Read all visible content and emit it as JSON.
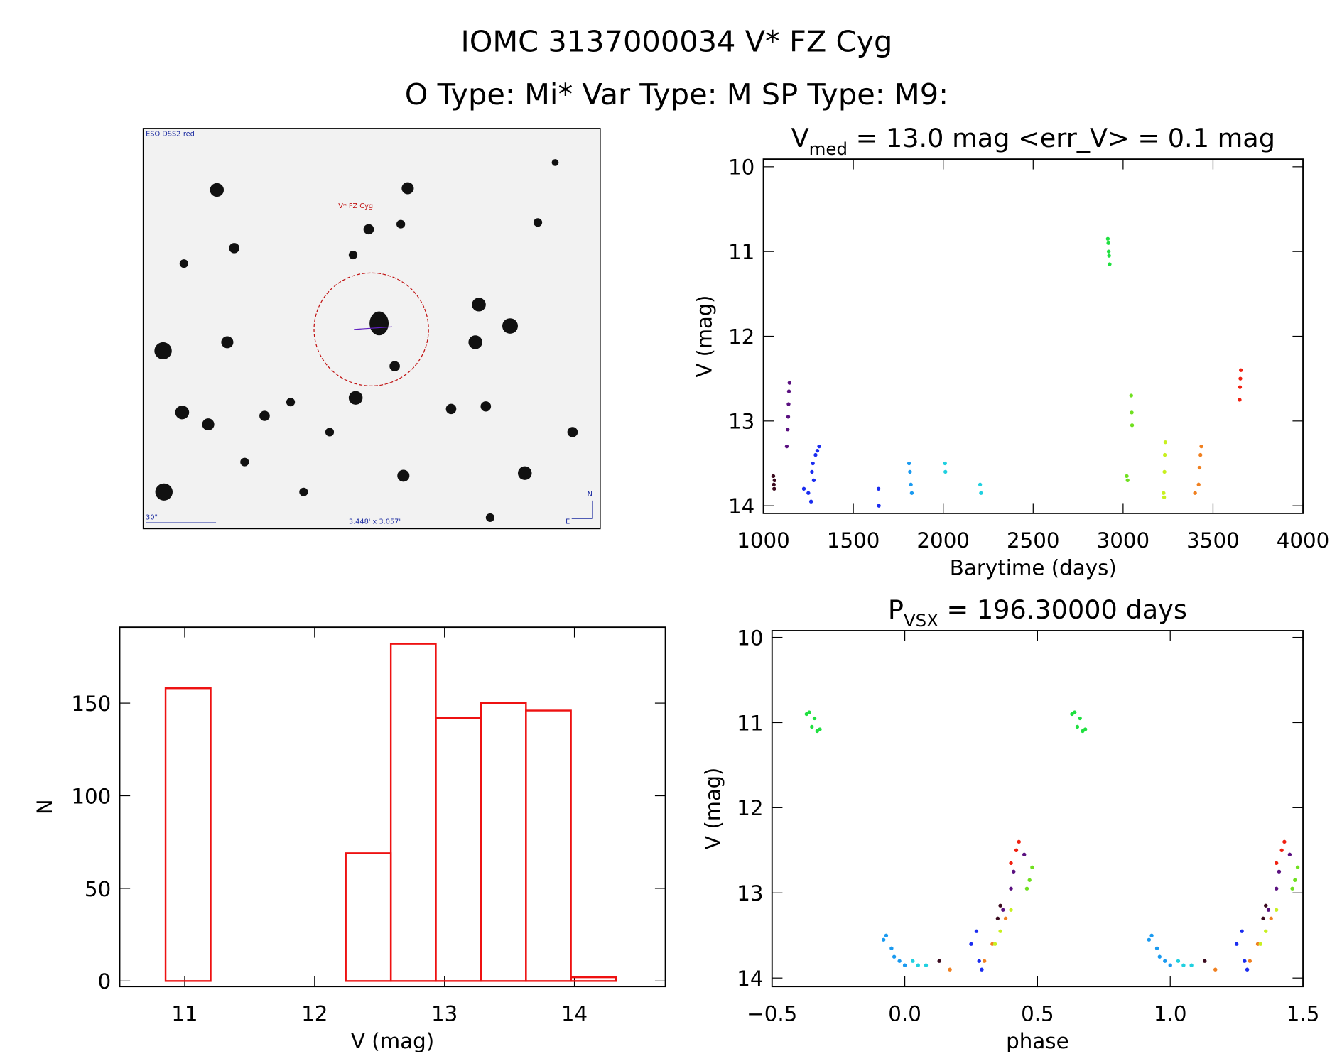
{
  "title": "IOMC 3137000034   V* FZ Cyg",
  "subtitle": "O Type: Mi*  Var Type: M  SP Type: M9:",
  "image": {
    "survey": "ESO DSS2-red",
    "target": "V* FZ Cyg",
    "scale": "30\"",
    "size": "3.448' x 3.057'",
    "north": "N",
    "east": "E"
  },
  "chart_data": [
    {
      "type": "scatter",
      "title_parts": [
        "V",
        "med",
        " = 13.0 mag <err_V> = 0.1 mag"
      ],
      "x_label": "Barytime (days)",
      "y_label": "V (mag)",
      "xlim": [
        1000,
        4000
      ],
      "ylim": [
        14.09,
        9.91
      ],
      "xticks": [
        1000,
        1500,
        2000,
        2500,
        3000,
        3500,
        4000
      ],
      "yticks": [
        10,
        11,
        12,
        13,
        14
      ],
      "series": [
        {
          "color": "#3a0a1e",
          "x": [
            1055,
            1058,
            1060,
            1062
          ],
          "values": [
            13.65,
            13.75,
            13.8,
            13.7
          ]
        },
        {
          "color": "#5a1080",
          "x": [
            1130,
            1135,
            1138,
            1140,
            1142,
            1145
          ],
          "values": [
            13.3,
            13.1,
            12.95,
            12.8,
            12.65,
            12.55
          ]
        },
        {
          "color": "#1a2cf0",
          "x": [
            1225,
            1250,
            1265,
            1270,
            1275,
            1280,
            1290,
            1300,
            1310,
            1640,
            1642
          ],
          "values": [
            13.8,
            13.85,
            13.95,
            13.6,
            13.5,
            13.7,
            13.4,
            13.35,
            13.3,
            13.8,
            14.0
          ]
        },
        {
          "color": "#1a9af0",
          "x": [
            1810,
            1815,
            1820,
            1825
          ],
          "values": [
            13.5,
            13.6,
            13.75,
            13.85
          ]
        },
        {
          "color": "#20d0e0",
          "x": [
            2010,
            2012,
            2205,
            2210
          ],
          "values": [
            13.5,
            13.6,
            13.75,
            13.85
          ]
        },
        {
          "color": "#20e040",
          "x": [
            2915,
            2918,
            2920,
            2922,
            2925
          ],
          "values": [
            10.85,
            10.9,
            11.0,
            11.05,
            11.15
          ]
        },
        {
          "color": "#70e020",
          "x": [
            3020,
            3025,
            3045,
            3048,
            3050
          ],
          "values": [
            13.65,
            13.7,
            12.7,
            12.9,
            13.05
          ]
        },
        {
          "color": "#c8f020",
          "x": [
            3225,
            3228,
            3230,
            3232,
            3235
          ],
          "values": [
            13.85,
            13.9,
            13.6,
            13.4,
            13.25
          ]
        },
        {
          "color": "#f08020",
          "x": [
            3400,
            3420,
            3425,
            3430,
            3435
          ],
          "values": [
            13.85,
            13.75,
            13.55,
            13.4,
            13.3
          ]
        },
        {
          "color": "#f02010",
          "x": [
            3648,
            3650,
            3652,
            3655
          ],
          "values": [
            12.75,
            12.6,
            12.5,
            12.4
          ]
        }
      ]
    },
    {
      "type": "scatter",
      "title_parts": [
        "P",
        "VSX",
        " = 196.30000 days"
      ],
      "x_label": "phase",
      "y_label": "V (mag)",
      "xlim": [
        -0.5,
        1.5
      ],
      "ylim": [
        14.1,
        9.92
      ],
      "xticks": [
        {
          "value": -0.5,
          "label": "−0.5"
        },
        {
          "value": 0,
          "label": "0.0"
        },
        {
          "value": 0.5,
          "label": "0.5"
        },
        {
          "value": 1,
          "label": "1.0"
        },
        {
          "value": 1.5,
          "label": "1.5"
        }
      ],
      "yticks": [
        10,
        11,
        12,
        13,
        14
      ],
      "series": [
        {
          "color": "#20e040",
          "x": [
            -0.37,
            -0.36,
            -0.35,
            -0.34,
            -0.33,
            -0.32,
            0.63,
            0.64,
            0.65,
            0.66,
            0.67,
            0.68
          ],
          "values": [
            10.9,
            10.88,
            11.05,
            10.95,
            11.1,
            11.08,
            10.9,
            10.88,
            11.05,
            10.95,
            11.1,
            11.08
          ]
        },
        {
          "color": "#1a9af0",
          "x": [
            -0.08,
            -0.07,
            -0.05,
            -0.04,
            -0.02,
            0.0,
            0.92,
            0.93,
            0.95,
            0.96,
            0.98,
            1.0
          ],
          "values": [
            13.55,
            13.5,
            13.65,
            13.75,
            13.8,
            13.85,
            13.55,
            13.5,
            13.65,
            13.75,
            13.8,
            13.85
          ]
        },
        {
          "color": "#20d0e0",
          "x": [
            0.03,
            0.05,
            0.08,
            1.03,
            1.05,
            1.08
          ],
          "values": [
            13.8,
            13.85,
            13.85,
            13.8,
            13.85,
            13.85
          ]
        },
        {
          "color": "#3a0a1e",
          "x": [
            0.13,
            0.35,
            0.36,
            1.13,
            1.35,
            1.36
          ],
          "values": [
            13.8,
            13.3,
            13.15,
            13.8,
            13.3,
            13.15
          ]
        },
        {
          "color": "#1a2cf0",
          "x": [
            0.25,
            0.27,
            0.28,
            0.29,
            1.25,
            1.27,
            1.28,
            1.29
          ],
          "values": [
            13.6,
            13.45,
            13.8,
            13.9,
            13.6,
            13.45,
            13.8,
            13.9
          ]
        },
        {
          "color": "#f08020",
          "x": [
            0.17,
            0.3,
            0.33,
            0.38,
            1.17,
            1.3,
            1.33,
            1.38
          ],
          "values": [
            13.9,
            13.8,
            13.6,
            13.3,
            13.9,
            13.8,
            13.6,
            13.3
          ]
        },
        {
          "color": "#c8f020",
          "x": [
            0.34,
            0.36,
            0.4,
            1.34,
            1.36,
            1.4
          ],
          "values": [
            13.6,
            13.45,
            13.2,
            13.6,
            13.45,
            13.2
          ]
        },
        {
          "color": "#5a1080",
          "x": [
            0.37,
            0.4,
            0.41,
            0.45,
            1.37,
            1.4,
            1.41,
            1.45
          ],
          "values": [
            13.2,
            12.95,
            12.75,
            12.55,
            13.2,
            12.95,
            12.75,
            12.55
          ]
        },
        {
          "color": "#f02010",
          "x": [
            0.4,
            0.42,
            0.43,
            1.4,
            1.42,
            1.43
          ],
          "values": [
            12.65,
            12.5,
            12.4,
            12.65,
            12.5,
            12.4
          ]
        },
        {
          "color": "#70e020",
          "x": [
            0.46,
            0.47,
            0.48,
            1.46,
            1.47,
            1.48
          ],
          "values": [
            12.95,
            12.85,
            12.7,
            12.95,
            12.85,
            12.7
          ]
        }
      ]
    },
    {
      "type": "histogram",
      "x_label": "V (mag)",
      "y_label": "N",
      "color": "#ee1111",
      "bins": [
        10.853,
        11.2,
        11.547,
        11.893,
        12.24,
        12.587,
        12.933,
        13.28,
        13.627,
        13.973,
        14.32
      ],
      "counts": [
        158,
        0,
        0,
        0,
        69,
        182,
        142,
        150,
        146,
        2
      ],
      "xlim": [
        10.5,
        14.7
      ],
      "ylim": [
        -3,
        191
      ],
      "xticks": [
        11,
        12,
        13,
        14
      ],
      "yticks": [
        0,
        50,
        100,
        150
      ]
    }
  ]
}
